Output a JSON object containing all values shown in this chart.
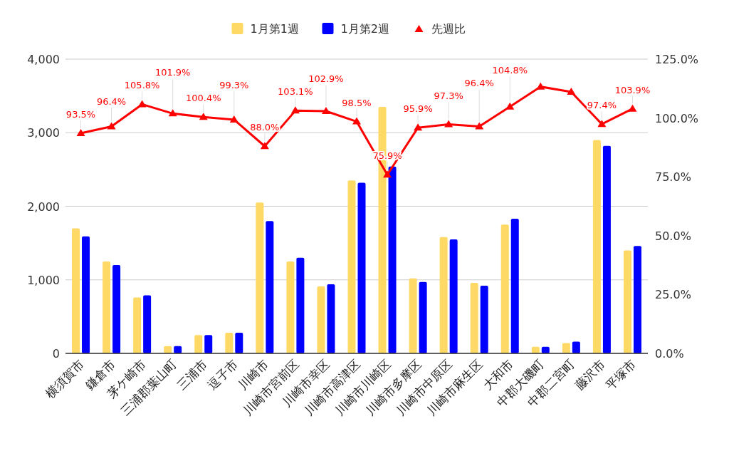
{
  "chart_data": {
    "type": "bar",
    "categories": [
      "横須賀市",
      "鎌倉市",
      "茅ケ崎市",
      "三浦郡葉山町",
      "三浦市",
      "逗子市",
      "川崎市",
      "川崎市宮前区",
      "川崎市幸区",
      "川崎市高津区",
      "川崎市川崎区",
      "川崎市多摩区",
      "川崎市中原区",
      "川崎市麻生区",
      "大和市",
      "中郡大磯町",
      "中郡二宮町",
      "藤沢市",
      "平塚市"
    ],
    "series": [
      {
        "name": "1月第1週",
        "color": "#ffd966",
        "values": [
          1700,
          1250,
          760,
          100,
          250,
          280,
          2050,
          1250,
          910,
          2350,
          3350,
          1020,
          1580,
          960,
          1750,
          90,
          140,
          2900,
          1400
        ]
      },
      {
        "name": "1月第2週",
        "color": "#0000ff",
        "values": [
          1590,
          1200,
          790,
          100,
          250,
          280,
          1800,
          1300,
          940,
          2320,
          2540,
          970,
          1550,
          920,
          1830,
          90,
          160,
          2820,
          1460
        ]
      },
      {
        "name": "先週比",
        "type": "line",
        "axis": "y2",
        "color": "#ff0000",
        "marker": "triangle",
        "values": [
          93.5,
          96.4,
          105.8,
          101.9,
          100.4,
          99.3,
          88.0,
          103.1,
          102.9,
          98.5,
          75.9,
          95.9,
          97.3,
          96.4,
          104.8,
          113.3,
          111.1,
          97.4,
          103.9
        ],
        "value_labels": [
          "93.5%",
          "96.4%",
          "105.8%",
          "101.9%",
          "100.4%",
          "99.3%",
          "88.0%",
          "103.1%",
          "102.9%",
          "98.5%",
          "75.9%",
          "95.9%",
          "97.3%",
          "96.4%",
          "104.8%",
          null,
          null,
          "97.4%",
          "103.9%"
        ]
      }
    ],
    "ylim": [
      0,
      4000
    ],
    "yticks": [
      0,
      {
        "value": 1000,
        "label": "1,000"
      },
      {
        "value": 2000,
        "label": "2,000"
      },
      {
        "value": 3000,
        "label": "3,000"
      },
      {
        "value": 4000,
        "label": "4,000"
      }
    ],
    "y2lim": [
      0,
      125
    ],
    "y2ticks": [
      {
        "value": 0,
        "label": "0.0%"
      },
      {
        "value": 25,
        "label": "25.0%"
      },
      {
        "value": 50,
        "label": "50.0%"
      },
      {
        "value": 75,
        "label": "75.0%"
      },
      {
        "value": 100,
        "label": "100.0%"
      },
      {
        "value": 125,
        "label": "125.0%"
      }
    ],
    "grid": "y",
    "legend": "top"
  }
}
